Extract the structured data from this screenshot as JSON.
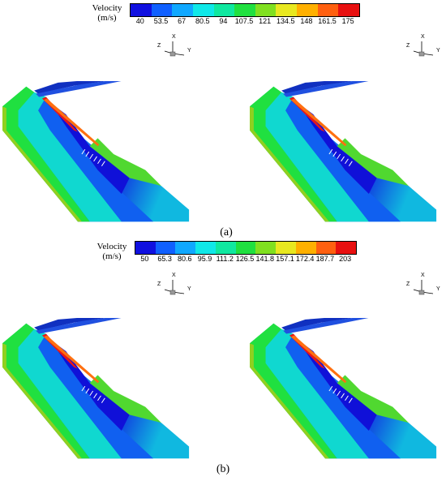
{
  "colorbar_a": {
    "title_line1": "Velocity",
    "title_line2": "(m/s)",
    "ticks": [
      "40",
      "53.5",
      "67",
      "80.5",
      "94",
      "107.5",
      "121",
      "134.5",
      "148",
      "161.5",
      "175"
    ]
  },
  "colorbar_b": {
    "title_line1": "Velocity",
    "title_line2": "(m/s)",
    "ticks": [
      "50",
      "65.3",
      "80.6",
      "95.9",
      "111.2",
      "126.5",
      "141.8",
      "157.1",
      "172.4",
      "187.7",
      "203"
    ]
  },
  "colormap": [
    "#1010e0",
    "#1060ff",
    "#10a8ff",
    "#10e8e8",
    "#10e8a0",
    "#20e040",
    "#80e020",
    "#e8e820",
    "#ffb000",
    "#ff6010",
    "#e81010"
  ],
  "axis_labels": {
    "x": "X",
    "y": "Y",
    "z": "Z"
  },
  "panel_labels": {
    "a": "(a)",
    "b": "(b)"
  }
}
